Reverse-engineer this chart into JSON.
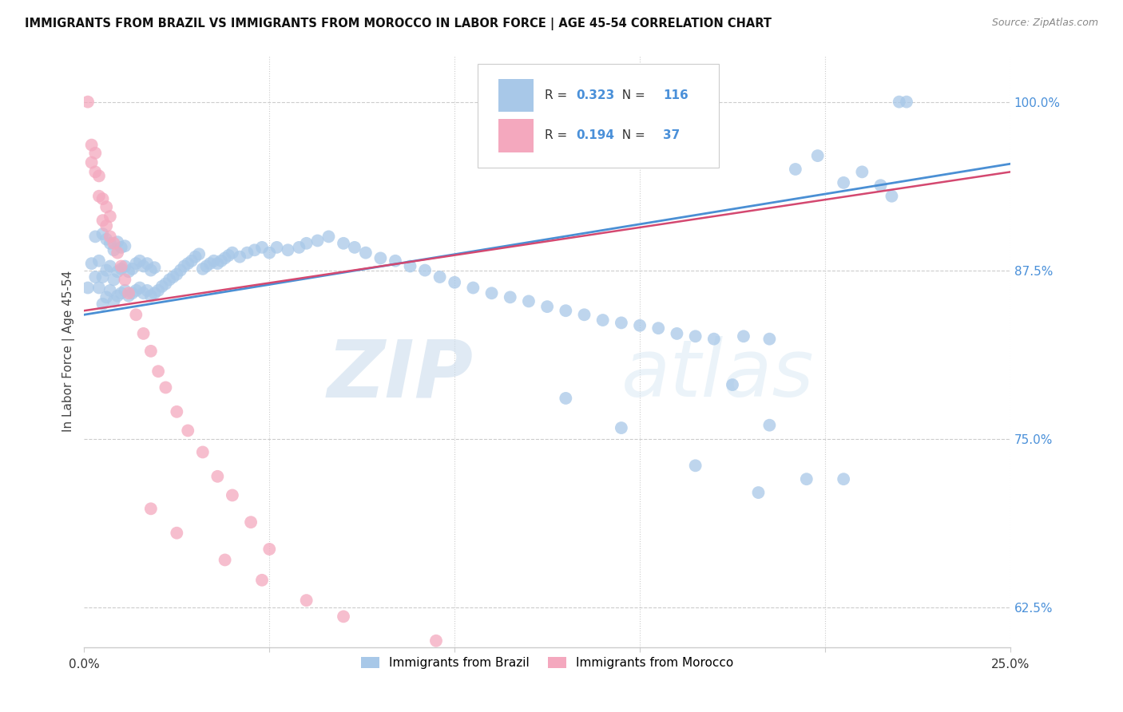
{
  "title": "IMMIGRANTS FROM BRAZIL VS IMMIGRANTS FROM MOROCCO IN LABOR FORCE | AGE 45-54 CORRELATION CHART",
  "source": "Source: ZipAtlas.com",
  "ylabel": "In Labor Force | Age 45-54",
  "xlim": [
    0.0,
    0.25
  ],
  "ylim": [
    0.595,
    1.035
  ],
  "R_brazil": 0.323,
  "N_brazil": 116,
  "R_morocco": 0.194,
  "N_morocco": 37,
  "color_brazil": "#a8c8e8",
  "color_morocco": "#f4a8be",
  "line_color_brazil": "#4a8fd4",
  "line_color_morocco": "#d44870",
  "legend_label_brazil": "Immigrants from Brazil",
  "legend_label_morocco": "Immigrants from Morocco",
  "watermark_zip": "ZIP",
  "watermark_atlas": "atlas",
  "trendline_brazil": [
    0.842,
    0.954
  ],
  "trendline_morocco": [
    0.845,
    0.948
  ],
  "yticks": [
    0.625,
    0.75,
    0.875,
    1.0
  ],
  "ytick_labels": [
    "62.5%",
    "75.0%",
    "87.5%",
    "100.0%"
  ],
  "brazil_x": [
    0.001,
    0.002,
    0.003,
    0.003,
    0.004,
    0.004,
    0.005,
    0.005,
    0.005,
    0.006,
    0.006,
    0.006,
    0.007,
    0.007,
    0.007,
    0.008,
    0.008,
    0.008,
    0.009,
    0.009,
    0.009,
    0.01,
    0.01,
    0.01,
    0.011,
    0.011,
    0.011,
    0.012,
    0.012,
    0.013,
    0.013,
    0.014,
    0.014,
    0.015,
    0.015,
    0.016,
    0.016,
    0.017,
    0.017,
    0.018,
    0.018,
    0.019,
    0.019,
    0.02,
    0.021,
    0.022,
    0.023,
    0.024,
    0.025,
    0.026,
    0.027,
    0.028,
    0.029,
    0.03,
    0.031,
    0.032,
    0.033,
    0.034,
    0.035,
    0.036,
    0.037,
    0.038,
    0.039,
    0.04,
    0.042,
    0.044,
    0.046,
    0.048,
    0.05,
    0.052,
    0.055,
    0.058,
    0.06,
    0.063,
    0.066,
    0.07,
    0.073,
    0.076,
    0.08,
    0.084,
    0.088,
    0.092,
    0.096,
    0.1,
    0.105,
    0.11,
    0.115,
    0.12,
    0.125,
    0.13,
    0.135,
    0.14,
    0.145,
    0.15,
    0.155,
    0.16,
    0.165,
    0.17,
    0.178,
    0.185,
    0.192,
    0.198,
    0.205,
    0.21,
    0.215,
    0.218,
    0.22,
    0.222,
    0.13,
    0.175,
    0.145,
    0.185,
    0.165,
    0.195,
    0.182,
    0.205
  ],
  "brazil_y": [
    0.862,
    0.88,
    0.87,
    0.9,
    0.862,
    0.882,
    0.85,
    0.87,
    0.902,
    0.855,
    0.875,
    0.898,
    0.86,
    0.878,
    0.895,
    0.852,
    0.868,
    0.89,
    0.856,
    0.874,
    0.896,
    0.858,
    0.876,
    0.892,
    0.86,
    0.878,
    0.893,
    0.856,
    0.874,
    0.858,
    0.876,
    0.86,
    0.88,
    0.862,
    0.882,
    0.858,
    0.878,
    0.86,
    0.88,
    0.856,
    0.875,
    0.858,
    0.877,
    0.86,
    0.863,
    0.865,
    0.868,
    0.87,
    0.872,
    0.875,
    0.878,
    0.88,
    0.882,
    0.885,
    0.887,
    0.876,
    0.878,
    0.88,
    0.882,
    0.88,
    0.882,
    0.884,
    0.886,
    0.888,
    0.885,
    0.888,
    0.89,
    0.892,
    0.888,
    0.892,
    0.89,
    0.892,
    0.895,
    0.897,
    0.9,
    0.895,
    0.892,
    0.888,
    0.884,
    0.882,
    0.878,
    0.875,
    0.87,
    0.866,
    0.862,
    0.858,
    0.855,
    0.852,
    0.848,
    0.845,
    0.842,
    0.838,
    0.836,
    0.834,
    0.832,
    0.828,
    0.826,
    0.824,
    0.826,
    0.824,
    0.95,
    0.96,
    0.94,
    0.948,
    0.938,
    0.93,
    1.0,
    1.0,
    0.78,
    0.79,
    0.758,
    0.76,
    0.73,
    0.72,
    0.71,
    0.72
  ],
  "morocco_x": [
    0.001,
    0.002,
    0.002,
    0.003,
    0.003,
    0.004,
    0.004,
    0.005,
    0.005,
    0.006,
    0.006,
    0.007,
    0.007,
    0.008,
    0.009,
    0.01,
    0.011,
    0.012,
    0.014,
    0.016,
    0.018,
    0.02,
    0.022,
    0.025,
    0.028,
    0.032,
    0.036,
    0.04,
    0.045,
    0.05,
    0.018,
    0.025,
    0.038,
    0.048,
    0.06,
    0.07,
    0.095
  ],
  "morocco_y": [
    1.0,
    0.955,
    0.968,
    0.948,
    0.962,
    0.93,
    0.945,
    0.912,
    0.928,
    0.908,
    0.922,
    0.9,
    0.915,
    0.895,
    0.888,
    0.878,
    0.868,
    0.858,
    0.842,
    0.828,
    0.815,
    0.8,
    0.788,
    0.77,
    0.756,
    0.74,
    0.722,
    0.708,
    0.688,
    0.668,
    0.698,
    0.68,
    0.66,
    0.645,
    0.63,
    0.618,
    0.6
  ]
}
